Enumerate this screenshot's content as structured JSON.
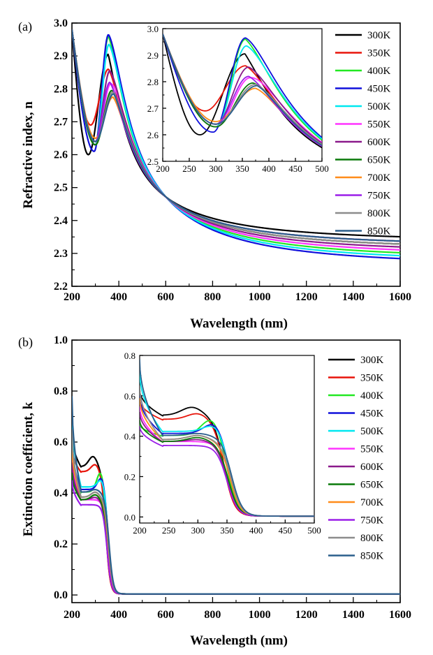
{
  "chart_data": [
    {
      "type": "line",
      "panel_label": "(a)",
      "xlabel": "Wavelength (nm)",
      "ylabel": "Refractive index, n",
      "xlim": [
        200,
        1600
      ],
      "ylim": [
        2.2,
        3.0
      ],
      "xticks": [
        200,
        400,
        600,
        800,
        1000,
        1200,
        1400,
        1600
      ],
      "yticks": [
        2.2,
        2.3,
        2.4,
        2.5,
        2.6,
        2.7,
        2.8,
        2.9,
        3.0
      ],
      "legend_position": "right",
      "series": [
        {
          "name": "300K",
          "color": "#000000",
          "min_x": 270,
          "min_y": 2.6,
          "peak_x": 355,
          "peak_y": 2.905,
          "tail_y": 2.335
        },
        {
          "name": "350K",
          "color": "#e8140a",
          "min_x": 280,
          "min_y": 2.69,
          "peak_x": 356,
          "peak_y": 2.86,
          "tail_y": 2.31
        },
        {
          "name": "400K",
          "color": "#22e822",
          "min_x": 300,
          "min_y": 2.63,
          "peak_x": 356,
          "peak_y": 2.96,
          "tail_y": 2.28
        },
        {
          "name": "450K",
          "color": "#1010dc",
          "min_x": 295,
          "min_y": 2.61,
          "peak_x": 356,
          "peak_y": 2.965,
          "tail_y": 2.26
        },
        {
          "name": "500K",
          "color": "#00e8f0",
          "min_x": 300,
          "min_y": 2.63,
          "peak_x": 358,
          "peak_y": 2.935,
          "tail_y": 2.27
        },
        {
          "name": "550K",
          "color": "#ff33ff",
          "min_x": 300,
          "min_y": 2.63,
          "peak_x": 365,
          "peak_y": 2.815,
          "tail_y": 2.29
        },
        {
          "name": "600K",
          "color": "#8b1a8b",
          "min_x": 300,
          "min_y": 2.64,
          "peak_x": 362,
          "peak_y": 2.855,
          "tail_y": 2.3
        },
        {
          "name": "650K",
          "color": "#0a7a0a",
          "min_x": 300,
          "min_y": 2.63,
          "peak_x": 370,
          "peak_y": 2.795,
          "tail_y": 2.31
        },
        {
          "name": "700K",
          "color": "#ff8c1a",
          "min_x": 300,
          "min_y": 2.65,
          "peak_x": 375,
          "peak_y": 2.775,
          "tail_y": 2.32
        },
        {
          "name": "750K",
          "color": "#9b1fe8",
          "min_x": 300,
          "min_y": 2.64,
          "peak_x": 362,
          "peak_y": 2.82,
          "tail_y": 2.32
        },
        {
          "name": "800K",
          "color": "#8c8c8c",
          "min_x": 300,
          "min_y": 2.64,
          "peak_x": 375,
          "peak_y": 2.79,
          "tail_y": 2.31
        },
        {
          "name": "850K",
          "color": "#2b5f8c",
          "min_x": 300,
          "min_y": 2.64,
          "peak_x": 378,
          "peak_y": 2.785,
          "tail_y": 2.32
        }
      ],
      "inset": {
        "xlim": [
          200,
          500
        ],
        "ylim": [
          2.5,
          3.0
        ],
        "xticks": [
          200,
          250,
          300,
          350,
          400,
          450,
          500
        ],
        "yticks": [
          2.5,
          2.6,
          2.7,
          2.8,
          2.9,
          3.0
        ]
      }
    },
    {
      "type": "line",
      "panel_label": "(b)",
      "xlabel": "Wavelength (nm)",
      "ylabel": "Extinction coefficient, k",
      "xlim": [
        200,
        1600
      ],
      "ylim": [
        -0.03,
        1.0
      ],
      "xticks": [
        200,
        400,
        600,
        800,
        1000,
        1200,
        1400,
        1600
      ],
      "yticks": [
        0.0,
        0.2,
        0.4,
        0.6,
        0.8,
        1.0
      ],
      "legend_position": "right",
      "series": [
        {
          "name": "300K",
          "color": "#000000",
          "k0": 0.63,
          "plateau": 0.5,
          "hump_x": 290,
          "hump": 0.04,
          "edge": 345
        },
        {
          "name": "350K",
          "color": "#e8140a",
          "k0": 0.58,
          "plateau": 0.48,
          "hump_x": 300,
          "hump": 0.03,
          "edge": 345
        },
        {
          "name": "400K",
          "color": "#22e822",
          "k0": 0.46,
          "plateau": 0.4,
          "hump_x": 325,
          "hump": 0.09,
          "edge": 352
        },
        {
          "name": "450K",
          "color": "#1010dc",
          "k0": 0.6,
          "plateau": 0.41,
          "hump_x": 330,
          "hump": 0.06,
          "edge": 355
        },
        {
          "name": "500K",
          "color": "#00e8f0",
          "k0": 0.72,
          "plateau": 0.42,
          "hump_x": 330,
          "hump": 0.04,
          "edge": 355
        },
        {
          "name": "550K",
          "color": "#ff33ff",
          "k0": 0.55,
          "plateau": 0.37,
          "hump_x": 310,
          "hump": 0.0,
          "edge": 352
        },
        {
          "name": "600K",
          "color": "#8b1a8b",
          "k0": 0.52,
          "plateau": 0.37,
          "hump_x": 300,
          "hump": 0.01,
          "edge": 350
        },
        {
          "name": "650K",
          "color": "#0a7a0a",
          "k0": 0.48,
          "plateau": 0.37,
          "hump_x": 300,
          "hump": 0.02,
          "edge": 352
        },
        {
          "name": "700K",
          "color": "#ff8c1a",
          "k0": 0.59,
          "plateau": 0.38,
          "hump_x": 300,
          "hump": 0.02,
          "edge": 355
        },
        {
          "name": "750K",
          "color": "#9b1fe8",
          "k0": 0.45,
          "plateau": 0.35,
          "hump_x": 300,
          "hump": 0.0,
          "edge": 350
        },
        {
          "name": "800K",
          "color": "#8c8c8c",
          "k0": 0.65,
          "plateau": 0.38,
          "hump_x": 300,
          "hump": 0.02,
          "edge": 357
        },
        {
          "name": "850K",
          "color": "#2b5f8c",
          "k0": 0.78,
          "plateau": 0.4,
          "hump_x": 300,
          "hump": 0.01,
          "edge": 358
        }
      ],
      "inset": {
        "xlim": [
          200,
          500
        ],
        "ylim": [
          -0.03,
          0.8
        ],
        "xticks": [
          200,
          250,
          300,
          350,
          400,
          450,
          500
        ],
        "yticks": [
          0.0,
          0.2,
          0.4,
          0.6,
          0.8
        ]
      }
    }
  ]
}
